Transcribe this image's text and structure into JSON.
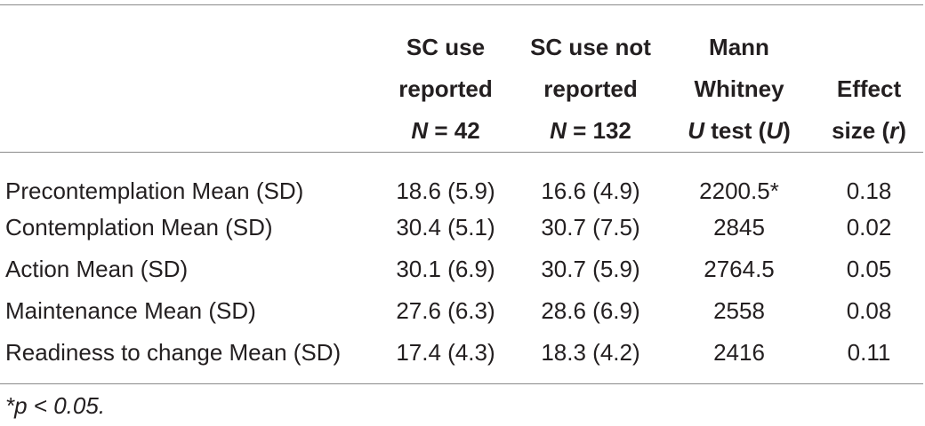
{
  "table": {
    "headers": [
      {
        "lines": [
          "",
          "",
          ""
        ]
      },
      {
        "lines": [
          "SC use",
          "reported"
        ],
        "n_prefix": "N",
        "n_rest": " = 42"
      },
      {
        "lines": [
          "SC use not",
          "reported"
        ],
        "n_prefix": "N",
        "n_rest": " = 132"
      },
      {
        "lines": [
          "Mann",
          "Whitney"
        ],
        "u_italic": "U",
        "u_mid": " test (",
        "u_italic2": "U",
        "u_end": ")"
      },
      {
        "lines": [
          "Effect"
        ],
        "r_pre": "size (",
        "r_italic": "r",
        "r_end": ")"
      }
    ],
    "rows": [
      {
        "label": "Precontemplation Mean (SD)",
        "sc_reported": "18.6 (5.9)",
        "sc_not_reported": "16.6 (4.9)",
        "u": "2200.5*",
        "r": "0.18"
      },
      {
        "label": "Contemplation Mean (SD)",
        "sc_reported": "30.4 (5.1)",
        "sc_not_reported": "30.7 (7.5)",
        "u": "2845",
        "r": "0.02"
      },
      {
        "label": "Action Mean (SD)",
        "sc_reported": "30.1 (6.9)",
        "sc_not_reported": "30.7 (5.9)",
        "u": "2764.5",
        "r": "0.05"
      },
      {
        "label": "Maintenance Mean (SD)",
        "sc_reported": "27.6 (6.3)",
        "sc_not_reported": "28.6 (6.9)",
        "u": "2558",
        "r": "0.08"
      },
      {
        "label": "Readiness to change Mean (SD)",
        "sc_reported": "17.4 (4.3)",
        "sc_not_reported": "18.3 (4.2)",
        "u": "2416",
        "r": "0.11"
      }
    ]
  },
  "footnote": "*p < 0.05."
}
